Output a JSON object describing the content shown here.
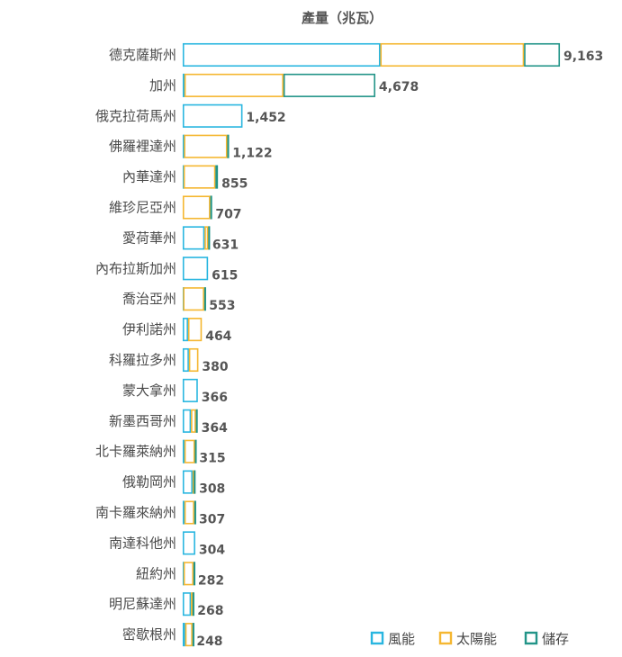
{
  "chart_data": {
    "type": "bar",
    "orientation": "horizontal",
    "stacked": true,
    "title": "產量（兆瓦）",
    "categories": [
      "德克薩斯州",
      "加州",
      "俄克拉荷馬州",
      "佛羅裡達州",
      "內華達州",
      "維珍尼亞州",
      "愛荷華州",
      "內布拉斯加州",
      "喬治亞州",
      "伊利諾州",
      "科羅拉多州",
      "蒙大拿州",
      "新墨西哥州",
      "北卡羅萊納州",
      "俄勒岡州",
      "南卡羅來納州",
      "南達科他州",
      "紐約州",
      "明尼蘇達州",
      "密歇根州"
    ],
    "series": [
      {
        "name": "風能",
        "color": "#29b6e0",
        "values": [
          4800,
          40,
          1452,
          30,
          20,
          0,
          530,
          615,
          10,
          130,
          150,
          366,
          200,
          40,
          240,
          40,
          304,
          20,
          200,
          60
        ]
      },
      {
        "name": "太陽能",
        "color": "#f5b731",
        "values": [
          3493,
          2408,
          0,
          1052,
          775,
          670,
          90,
          0,
          513,
          334,
          230,
          0,
          120,
          255,
          28,
          242,
          0,
          242,
          38,
          178
        ]
      },
      {
        "name": "儲存",
        "color": "#229488",
        "values": [
          870,
          2230,
          0,
          40,
          60,
          37,
          11,
          0,
          30,
          0,
          0,
          0,
          44,
          20,
          40,
          25,
          0,
          20,
          30,
          10
        ]
      }
    ],
    "totals": [
      "9,163",
      "4,678",
      "1,452",
      "1,122",
      "855",
      "707",
      "631",
      "615",
      "553",
      "464",
      "380",
      "366",
      "364",
      "315",
      "308",
      "307",
      "304",
      "282",
      "268",
      "248"
    ],
    "xlim": [
      0,
      9163
    ],
    "grid": false,
    "legend": "bottom-right"
  }
}
